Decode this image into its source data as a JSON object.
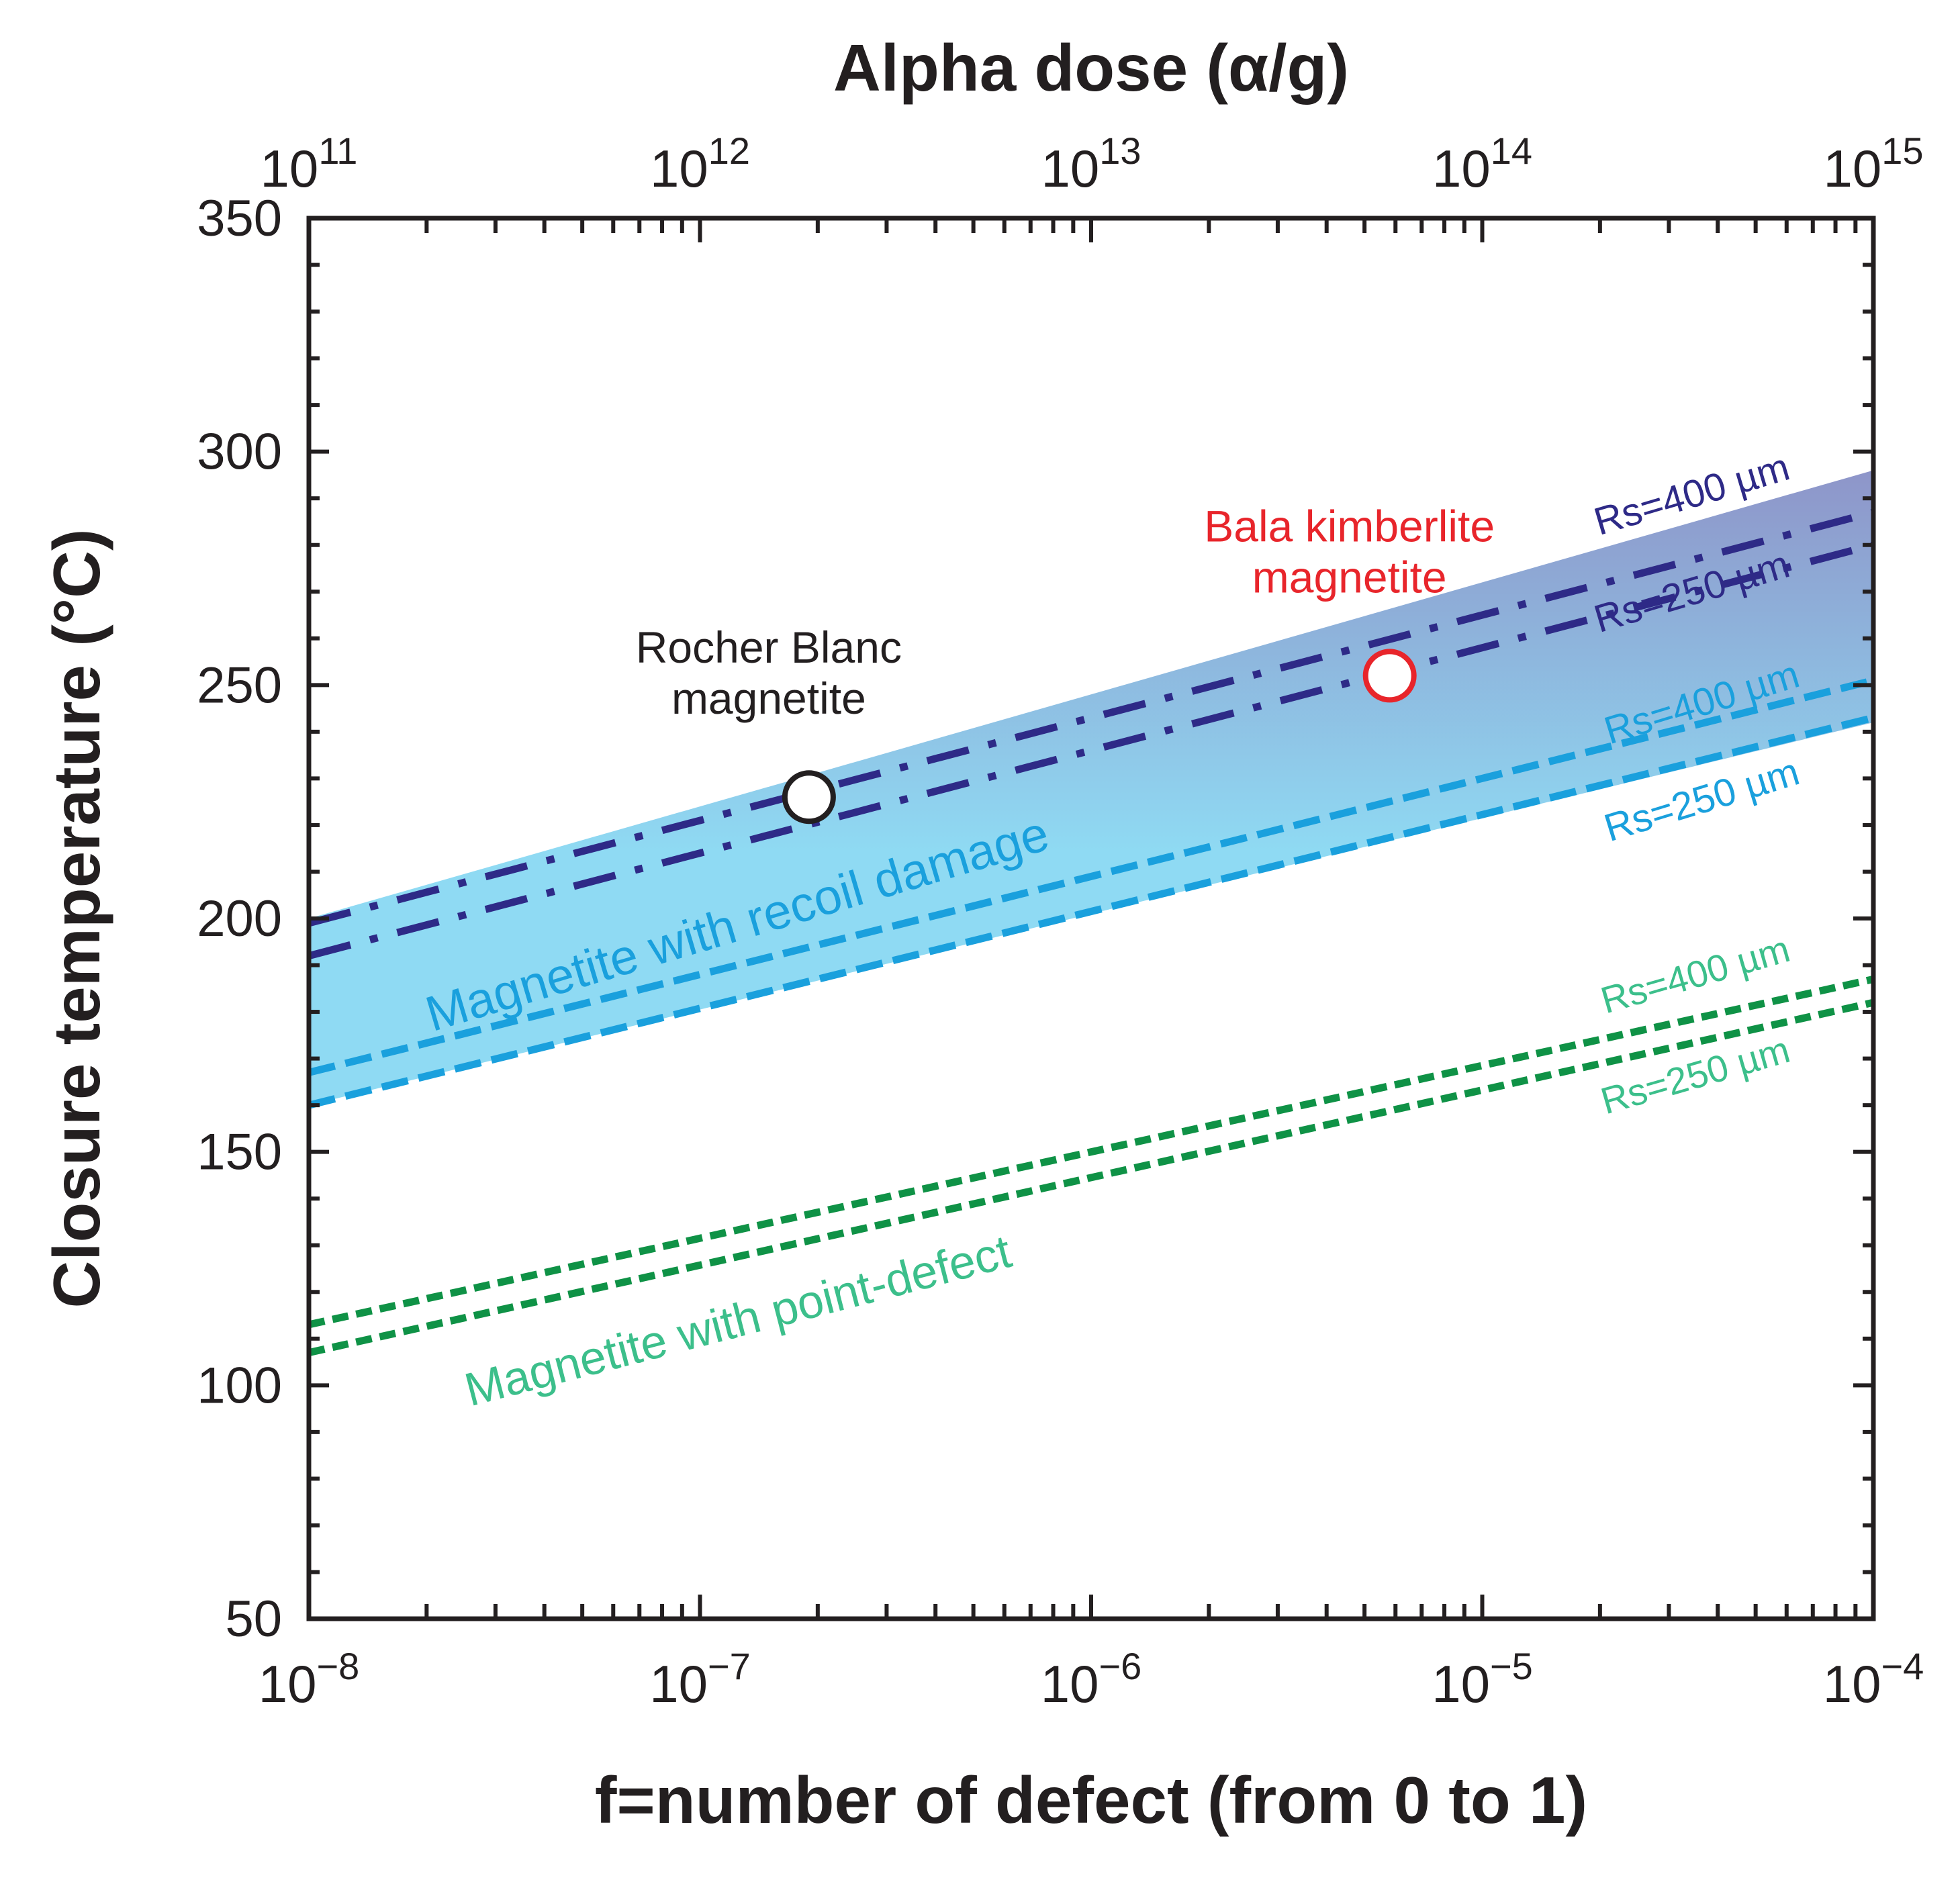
{
  "chart_data": {
    "type": "line",
    "title": "",
    "x_bottom": {
      "label": "f=number of defect (from 0 to 1)",
      "scale": "log",
      "range": [
        1e-08,
        0.0001
      ],
      "ticks": [
        {
          "value": 1e-08,
          "base": "10",
          "exp": "−8"
        },
        {
          "value": 1e-07,
          "base": "10",
          "exp": "−7"
        },
        {
          "value": 1e-06,
          "base": "10",
          "exp": "−6"
        },
        {
          "value": 1e-05,
          "base": "10",
          "exp": "−5"
        },
        {
          "value": 0.0001,
          "base": "10",
          "exp": "−4"
        }
      ]
    },
    "x_top": {
      "label": "Alpha dose (α/g)",
      "scale": "log",
      "range": [
        100000000000.0,
        1000000000000000.0
      ],
      "ticks": [
        {
          "value": 100000000000.0,
          "base": "10",
          "exp": "11"
        },
        {
          "value": 1000000000000.0,
          "base": "10",
          "exp": "12"
        },
        {
          "value": 10000000000000.0,
          "base": "10",
          "exp": "13"
        },
        {
          "value": 100000000000000.0,
          "base": "10",
          "exp": "14"
        },
        {
          "value": 1000000000000000.0,
          "base": "10",
          "exp": "15"
        }
      ]
    },
    "y": {
      "label": "Closure temperature (°C)",
      "range": [
        50,
        350
      ],
      "ticks": [
        50,
        100,
        150,
        200,
        250,
        300,
        350
      ]
    },
    "band": {
      "label": "Magnetite with recoil damage",
      "upper": {
        "x": [
          1e-08,
          0.0001
        ],
        "y": [
          200,
          296
        ]
      },
      "lower": {
        "x": [
          1e-08,
          0.0001
        ],
        "y": [
          160,
          242
        ]
      },
      "color_top": "#8e95c9",
      "color_bottom": "#8fdaf3"
    },
    "series": [
      {
        "group": "recoil-upper",
        "name": "Rs=400 µm",
        "x": [
          1e-08,
          0.0001
        ],
        "y": [
          199,
          287
        ],
        "style": "dashdot",
        "color": "#2e2a87"
      },
      {
        "group": "recoil-upper",
        "name": "Rs=250 µm",
        "x": [
          1e-08,
          0.0001
        ],
        "y": [
          192,
          280
        ],
        "style": "dashdot",
        "color": "#2e2a87"
      },
      {
        "group": "recoil-lower",
        "name": "Rs=400 µm",
        "x": [
          1e-08,
          0.0001
        ],
        "y": [
          167,
          251
        ],
        "style": "dashed",
        "color": "#1aa0dd"
      },
      {
        "group": "recoil-lower",
        "name": "Rs=250 µm",
        "x": [
          1e-08,
          0.0001
        ],
        "y": [
          160,
          243
        ],
        "style": "dashed",
        "color": "#1aa0dd"
      },
      {
        "group": "point-defect",
        "name": "Rs=400 µm",
        "x": [
          1e-08,
          0.0001
        ],
        "y": [
          113,
          187
        ],
        "style": "dotted",
        "color": "#0f9246"
      },
      {
        "group": "point-defect",
        "name": "Rs=250 µm",
        "x": [
          1e-08,
          0.0001
        ],
        "y": [
          107,
          182
        ],
        "style": "dotted",
        "color": "#0f9246"
      }
    ],
    "points": [
      {
        "name": "Rocher Blanc magnetite",
        "line1": "Rocher Blanc",
        "line2": "magnetite",
        "x": 1.9e-07,
        "y": 226,
        "stroke": "#231f20",
        "text_color": "#231f20"
      },
      {
        "name": "Bala kimberlite magnetite",
        "line1": "Bala kimberlite",
        "line2": "magnetite",
        "x": 5.8e-06,
        "y": 252,
        "stroke": "#e8252b",
        "text_color": "#e8252b"
      }
    ],
    "annotations": [
      {
        "text": "Magnetite with recoil damage",
        "color": "#1aa0dd"
      },
      {
        "text": "Magnetite with point-defect",
        "color": "#3cbf8b"
      },
      {
        "text": "Rs=400 µm",
        "group": "recoil-upper",
        "color": "#2e2a87"
      },
      {
        "text": "Rs=250 µm",
        "group": "recoil-upper",
        "color": "#2e2a87"
      },
      {
        "text": "Rs=400 µm",
        "group": "recoil-lower",
        "color": "#1aa0dd"
      },
      {
        "text": "Rs=250 µm",
        "group": "recoil-lower",
        "color": "#1aa0dd"
      },
      {
        "text": "Rs=400 µm",
        "group": "point-defect",
        "color": "#3cbf8b"
      },
      {
        "text": "Rs=250 µm",
        "group": "point-defect",
        "color": "#3cbf8b"
      }
    ],
    "grid": false,
    "legend": "none"
  }
}
